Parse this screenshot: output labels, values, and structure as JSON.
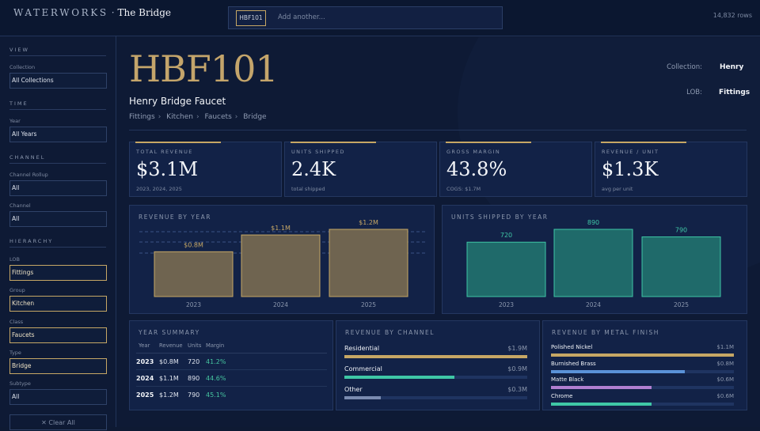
{
  "header": {
    "brand": "WATERWORKS",
    "brand_sep": "·",
    "brand_sub": "The Bridge",
    "search_chip": "HBF101",
    "search_placeholder": "Add another...",
    "row_count": "14,832 rows"
  },
  "sidebar": {
    "view_title": "VIEW",
    "collection_label": "Collection",
    "collection_value": "All Collections",
    "time_title": "TIME",
    "year_label": "Year",
    "year_value": "All Years",
    "channel_title": "CHANNEL",
    "rollup_label": "Channel Rollup",
    "rollup_value": "All",
    "channel_label": "Channel",
    "channel_value": "All",
    "hierarchy_title": "HIERARCHY",
    "lob_label": "LOB",
    "lob_value": "Fittings",
    "group_label": "Group",
    "group_value": "Kitchen",
    "class_label": "Class",
    "class_value": "Faucets",
    "type_label": "Type",
    "type_value": "Bridge",
    "subtype_label": "Subtype",
    "subtype_value": "All",
    "clear_label": "✕ Clear All"
  },
  "product": {
    "sku": "HBF101",
    "name": "Henry Bridge Faucet",
    "crumbs": [
      "Fittings",
      "Kitchen",
      "Faucets",
      "Bridge"
    ],
    "collection_label": "Collection:",
    "collection_value": "Henry",
    "lob_label": "LOB:",
    "lob_value": "Fittings"
  },
  "kpis": [
    {
      "label": "TOTAL REVENUE",
      "value": "$3.1M",
      "sub": "2023, 2024, 2025"
    },
    {
      "label": "UNITS SHIPPED",
      "value": "2.4K",
      "sub": "total shipped"
    },
    {
      "label": "GROSS MARGIN",
      "value": "43.8%",
      "sub": "COGS: $1.7M"
    },
    {
      "label": "REVENUE / UNIT",
      "value": "$1.3K",
      "sub": "avg per unit"
    }
  ],
  "revenue_title": "REVENUE BY YEAR",
  "units_title": "UNITS SHIPPED BY YEAR",
  "chart_data": [
    {
      "type": "bar",
      "title": "REVENUE BY YEAR",
      "categories": [
        "2023",
        "2024",
        "2025"
      ],
      "values": [
        0.8,
        1.1,
        1.2
      ],
      "labels": [
        "$0.8M",
        "$1.1M",
        "$1.2M"
      ],
      "color": "#6f6450",
      "stroke": "#c6a765",
      "label_color": "#c6a765"
    },
    {
      "type": "bar",
      "title": "UNITS SHIPPED BY YEAR",
      "categories": [
        "2023",
        "2024",
        "2025"
      ],
      "values": [
        720,
        890,
        790
      ],
      "labels": [
        "720",
        "890",
        "790"
      ],
      "color": "#1f6a6a",
      "stroke": "#3fc7a6",
      "label_color": "#3fc7a6"
    }
  ],
  "summary": {
    "title": "YEAR SUMMARY",
    "headers": [
      "Year",
      "Revenue",
      "Units",
      "Margin"
    ],
    "rows": [
      [
        "2023",
        "$0.8M",
        "720",
        "41.2%"
      ],
      [
        "2024",
        "$1.1M",
        "890",
        "44.6%"
      ],
      [
        "2025",
        "$1.2M",
        "790",
        "45.1%"
      ]
    ]
  },
  "channels": {
    "title": "REVENUE BY CHANNEL",
    "items": [
      {
        "label": "Residential",
        "value": "$1.9M",
        "fraction": 1.0,
        "color": "#c6a765"
      },
      {
        "label": "Commercial",
        "value": "$0.9M",
        "fraction": 0.6,
        "color": "#3fc7a6"
      },
      {
        "label": "Other",
        "value": "$0.3M",
        "fraction": 0.2,
        "color": "#7a8bb0"
      }
    ]
  },
  "finishes": {
    "title": "REVENUE BY METAL FINISH",
    "items": [
      {
        "label": "Polished Nickel",
        "value": "$1.1M",
        "fraction": 1.0,
        "color": "#c6a765"
      },
      {
        "label": "Burnished Brass",
        "value": "$0.8M",
        "fraction": 0.73,
        "color": "#5a92d8"
      },
      {
        "label": "Matte Black",
        "value": "$0.6M",
        "fraction": 0.55,
        "color": "#b07fd0"
      },
      {
        "label": "Chrome",
        "value": "$0.6M",
        "fraction": 0.55,
        "color": "#3fc7a6"
      }
    ]
  }
}
